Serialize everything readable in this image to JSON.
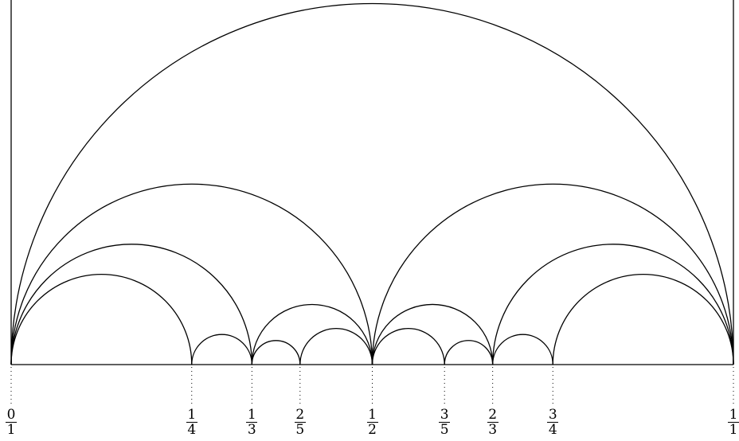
{
  "diagram": {
    "fractions": [
      {
        "num": "0",
        "den": "1",
        "value": 0
      },
      {
        "num": "1",
        "den": "4",
        "value": 0.25
      },
      {
        "num": "1",
        "den": "3",
        "value": 0.3333333
      },
      {
        "num": "2",
        "den": "5",
        "value": 0.4
      },
      {
        "num": "1",
        "den": "2",
        "value": 0.5
      },
      {
        "num": "3",
        "den": "5",
        "value": 0.6
      },
      {
        "num": "2",
        "den": "3",
        "value": 0.6666667
      },
      {
        "num": "3",
        "den": "4",
        "value": 0.75
      },
      {
        "num": "1",
        "den": "1",
        "value": 1
      }
    ],
    "arcs": [
      [
        0,
        1
      ],
      [
        0,
        0.5
      ],
      [
        0.5,
        1
      ],
      [
        0,
        0.3333333
      ],
      [
        0.6666667,
        1
      ],
      [
        0,
        0.25
      ],
      [
        0.75,
        1
      ],
      [
        0.3333333,
        0.5
      ],
      [
        0.5,
        0.6666667
      ],
      [
        0.25,
        0.3333333
      ],
      [
        0.3333333,
        0.4
      ],
      [
        0.4,
        0.5
      ],
      [
        0.5,
        0.6
      ],
      [
        0.6,
        0.6666667
      ],
      [
        0.6666667,
        0.75
      ]
    ]
  }
}
